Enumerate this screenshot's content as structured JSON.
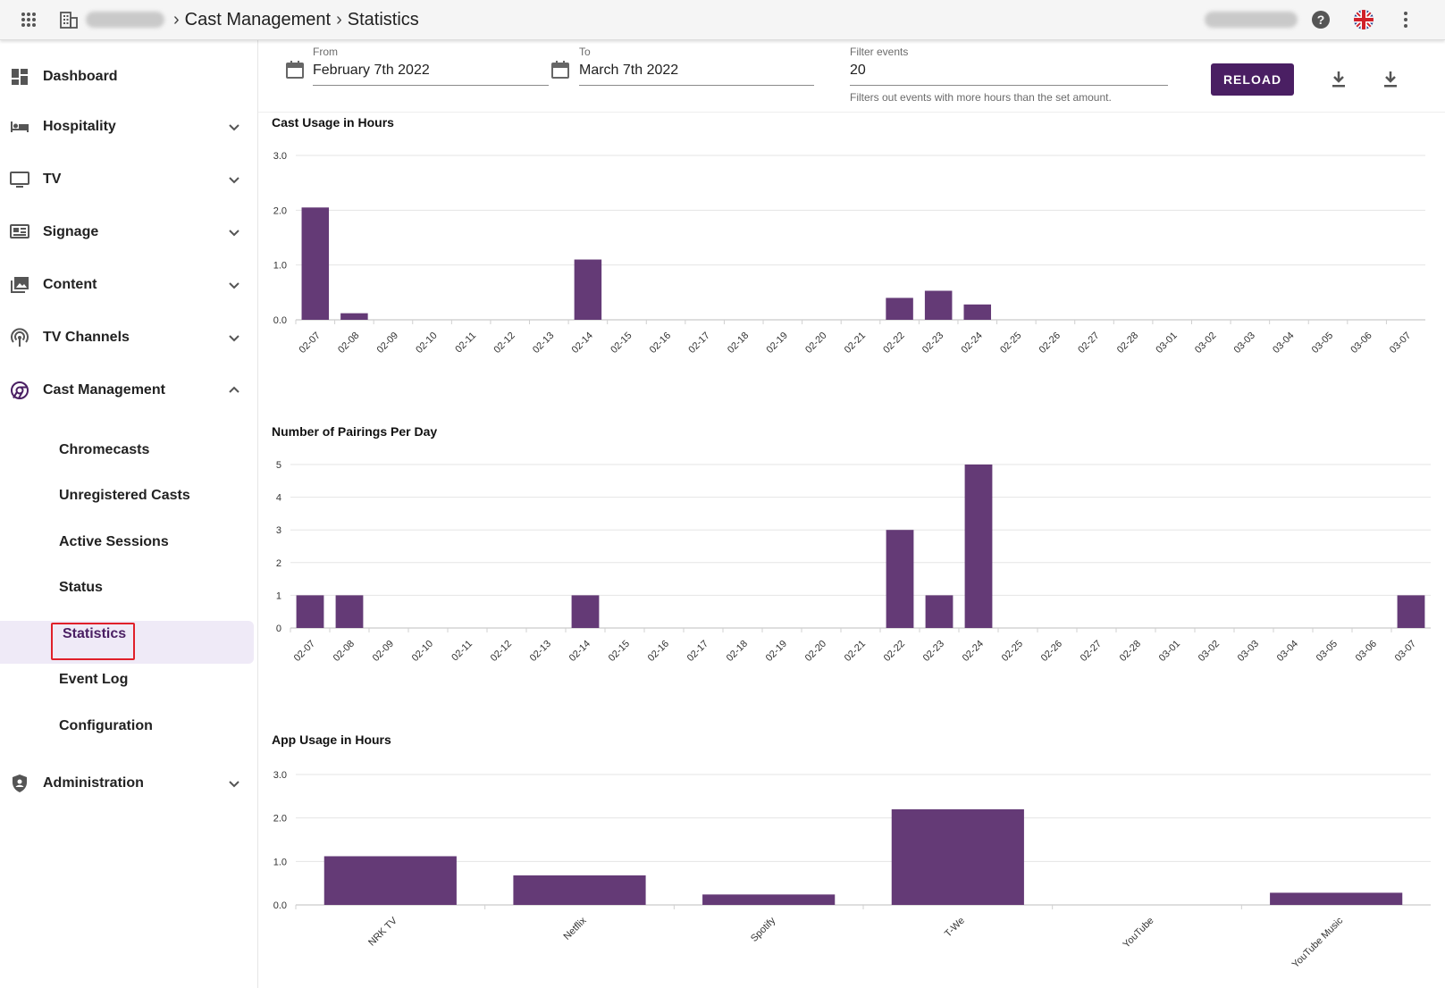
{
  "topbar": {
    "breadcrumb": [
      "Cast Management",
      "Statistics"
    ],
    "icons": [
      "apps-grid-icon",
      "building-icon",
      "help-icon",
      "uk-flag-icon",
      "more-vert-icon"
    ]
  },
  "sidebar": {
    "items": [
      {
        "label": "Dashboard",
        "icon": "dashboard-icon"
      },
      {
        "label": "Hospitality",
        "icon": "bed-icon"
      },
      {
        "label": "TV",
        "icon": "tv-icon"
      },
      {
        "label": "Signage",
        "icon": "signage-icon"
      },
      {
        "label": "Content",
        "icon": "image-library-icon"
      },
      {
        "label": "TV Channels",
        "icon": "antenna-icon"
      },
      {
        "label": "Cast Management",
        "icon": "cast-icon"
      },
      {
        "label": "Administration",
        "icon": "shield-user-icon"
      }
    ],
    "subitems": [
      "Chromecasts",
      "Unregistered Casts",
      "Active Sessions",
      "Status",
      "Statistics",
      "Event Log",
      "Configuration"
    ],
    "active_subitem": "Statistics"
  },
  "filters": {
    "from_label": "From",
    "from_value": "February 7th 2022",
    "to_label": "To",
    "to_value": "March 7th 2022",
    "filter_label": "Filter events",
    "filter_value": "20",
    "filter_hint": "Filters out events with more hours than the set amount.",
    "reload_label": "RELOAD"
  },
  "colors": {
    "bar": "#643a76",
    "accent": "#4a1f63",
    "active_bg": "#efeaf7",
    "highlight": "#e0202a"
  },
  "chart_data": [
    {
      "type": "bar",
      "title": "Cast Usage in Hours",
      "categories": [
        "02-07",
        "02-08",
        "02-09",
        "02-10",
        "02-11",
        "02-12",
        "02-13",
        "02-14",
        "02-15",
        "02-16",
        "02-17",
        "02-18",
        "02-19",
        "02-20",
        "02-21",
        "02-22",
        "02-23",
        "02-24",
        "02-25",
        "02-26",
        "02-27",
        "02-28",
        "03-01",
        "03-02",
        "03-03",
        "03-04",
        "03-05",
        "03-06",
        "03-07"
      ],
      "values": [
        2.05,
        0.12,
        0,
        0,
        0,
        0,
        0,
        1.1,
        0,
        0,
        0,
        0,
        0,
        0,
        0,
        0.4,
        0.53,
        0.28,
        0,
        0,
        0,
        0,
        0,
        0,
        0,
        0,
        0,
        0,
        0
      ],
      "yticks": [
        "0.0",
        "1.0",
        "2.0",
        "3.0"
      ],
      "ylim": [
        0,
        3
      ],
      "grid": true
    },
    {
      "type": "bar",
      "title": "Number of Pairings Per Day",
      "categories": [
        "02-07",
        "02-08",
        "02-09",
        "02-10",
        "02-11",
        "02-12",
        "02-13",
        "02-14",
        "02-15",
        "02-16",
        "02-17",
        "02-18",
        "02-19",
        "02-20",
        "02-21",
        "02-22",
        "02-23",
        "02-24",
        "02-25",
        "02-26",
        "02-27",
        "02-28",
        "03-01",
        "03-02",
        "03-03",
        "03-04",
        "03-05",
        "03-06",
        "03-07"
      ],
      "values": [
        1,
        1,
        0,
        0,
        0,
        0,
        0,
        1,
        0,
        0,
        0,
        0,
        0,
        0,
        0,
        3,
        1,
        5,
        0,
        0,
        0,
        0,
        0,
        0,
        0,
        0,
        0,
        0,
        1
      ],
      "yticks": [
        "0",
        "1",
        "2",
        "3",
        "4",
        "5"
      ],
      "ylim": [
        0,
        5
      ],
      "grid": true
    },
    {
      "type": "bar",
      "title": "App Usage in Hours",
      "categories": [
        "NRK TV",
        "Netflix",
        "Spotify",
        "T-We",
        "YouTube",
        "YouTube Music"
      ],
      "values": [
        1.12,
        0.68,
        0.24,
        2.2,
        0,
        0.28
      ],
      "yticks": [
        "0.0",
        "1.0",
        "2.0",
        "3.0"
      ],
      "ylim": [
        0,
        3
      ],
      "grid": true
    }
  ]
}
